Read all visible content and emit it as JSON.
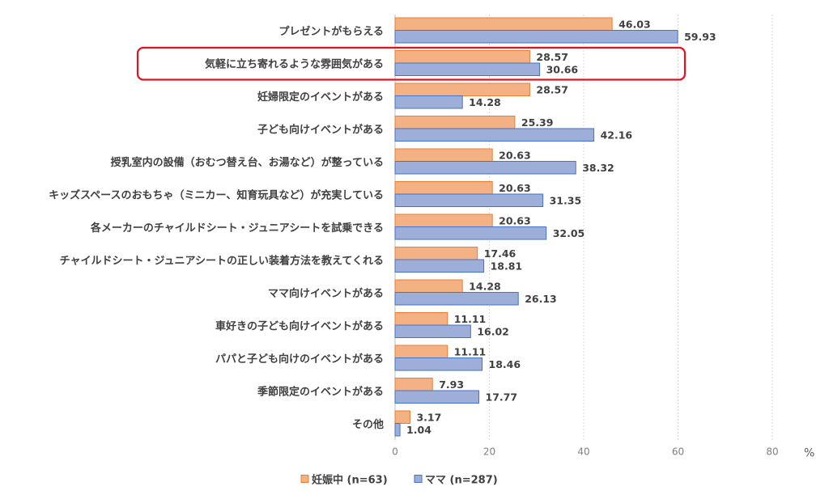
{
  "chart_data": {
    "type": "bar",
    "orientation": "horizontal",
    "categories": [
      "プレゼントがもらえる",
      "気軽に立ち寄れるような雰囲気がある",
      "妊婦限定のイベントがある",
      "子ども向けイベントがある",
      "授乳室内の設備（おむつ替え台、お湯など）が整っている",
      "キッズスペースのおもちゃ（ミニカー、知育玩具など）が充実している",
      "各メーカーのチャイルドシート・ジュニアシートを試乗できる",
      "チャイルドシート・ジュニアシートの正しい装着方法を教えてくれる",
      "ママ向けイベントがある",
      "車好きの子ども向けイベントがある",
      "パパと子ども向けのイベントがある",
      "季節限定のイベントがある",
      "その他"
    ],
    "series": [
      {
        "name": "妊娠中 (n=63)",
        "color": "#f4b183",
        "border": "#ed7d31",
        "values": [
          46.03,
          28.57,
          28.57,
          25.39,
          20.63,
          20.63,
          20.63,
          17.46,
          14.28,
          11.11,
          11.11,
          7.93,
          3.17
        ]
      },
      {
        "name": "ママ (n=287)",
        "color": "#9dafd9",
        "border": "#4472c4",
        "values": [
          59.93,
          30.66,
          14.28,
          42.16,
          38.32,
          31.35,
          32.05,
          18.81,
          26.13,
          16.02,
          18.46,
          17.77,
          1.04
        ]
      }
    ],
    "xlim": [
      0,
      80
    ],
    "xticks": [
      "0",
      "20",
      "40",
      "60",
      "80"
    ],
    "unit": "%",
    "highlighted_category": "気軽に立ち寄れるような雰囲気がある",
    "highlight_color": "#e8101a",
    "grid": "vertical dotted",
    "legend_position": "bottom"
  }
}
